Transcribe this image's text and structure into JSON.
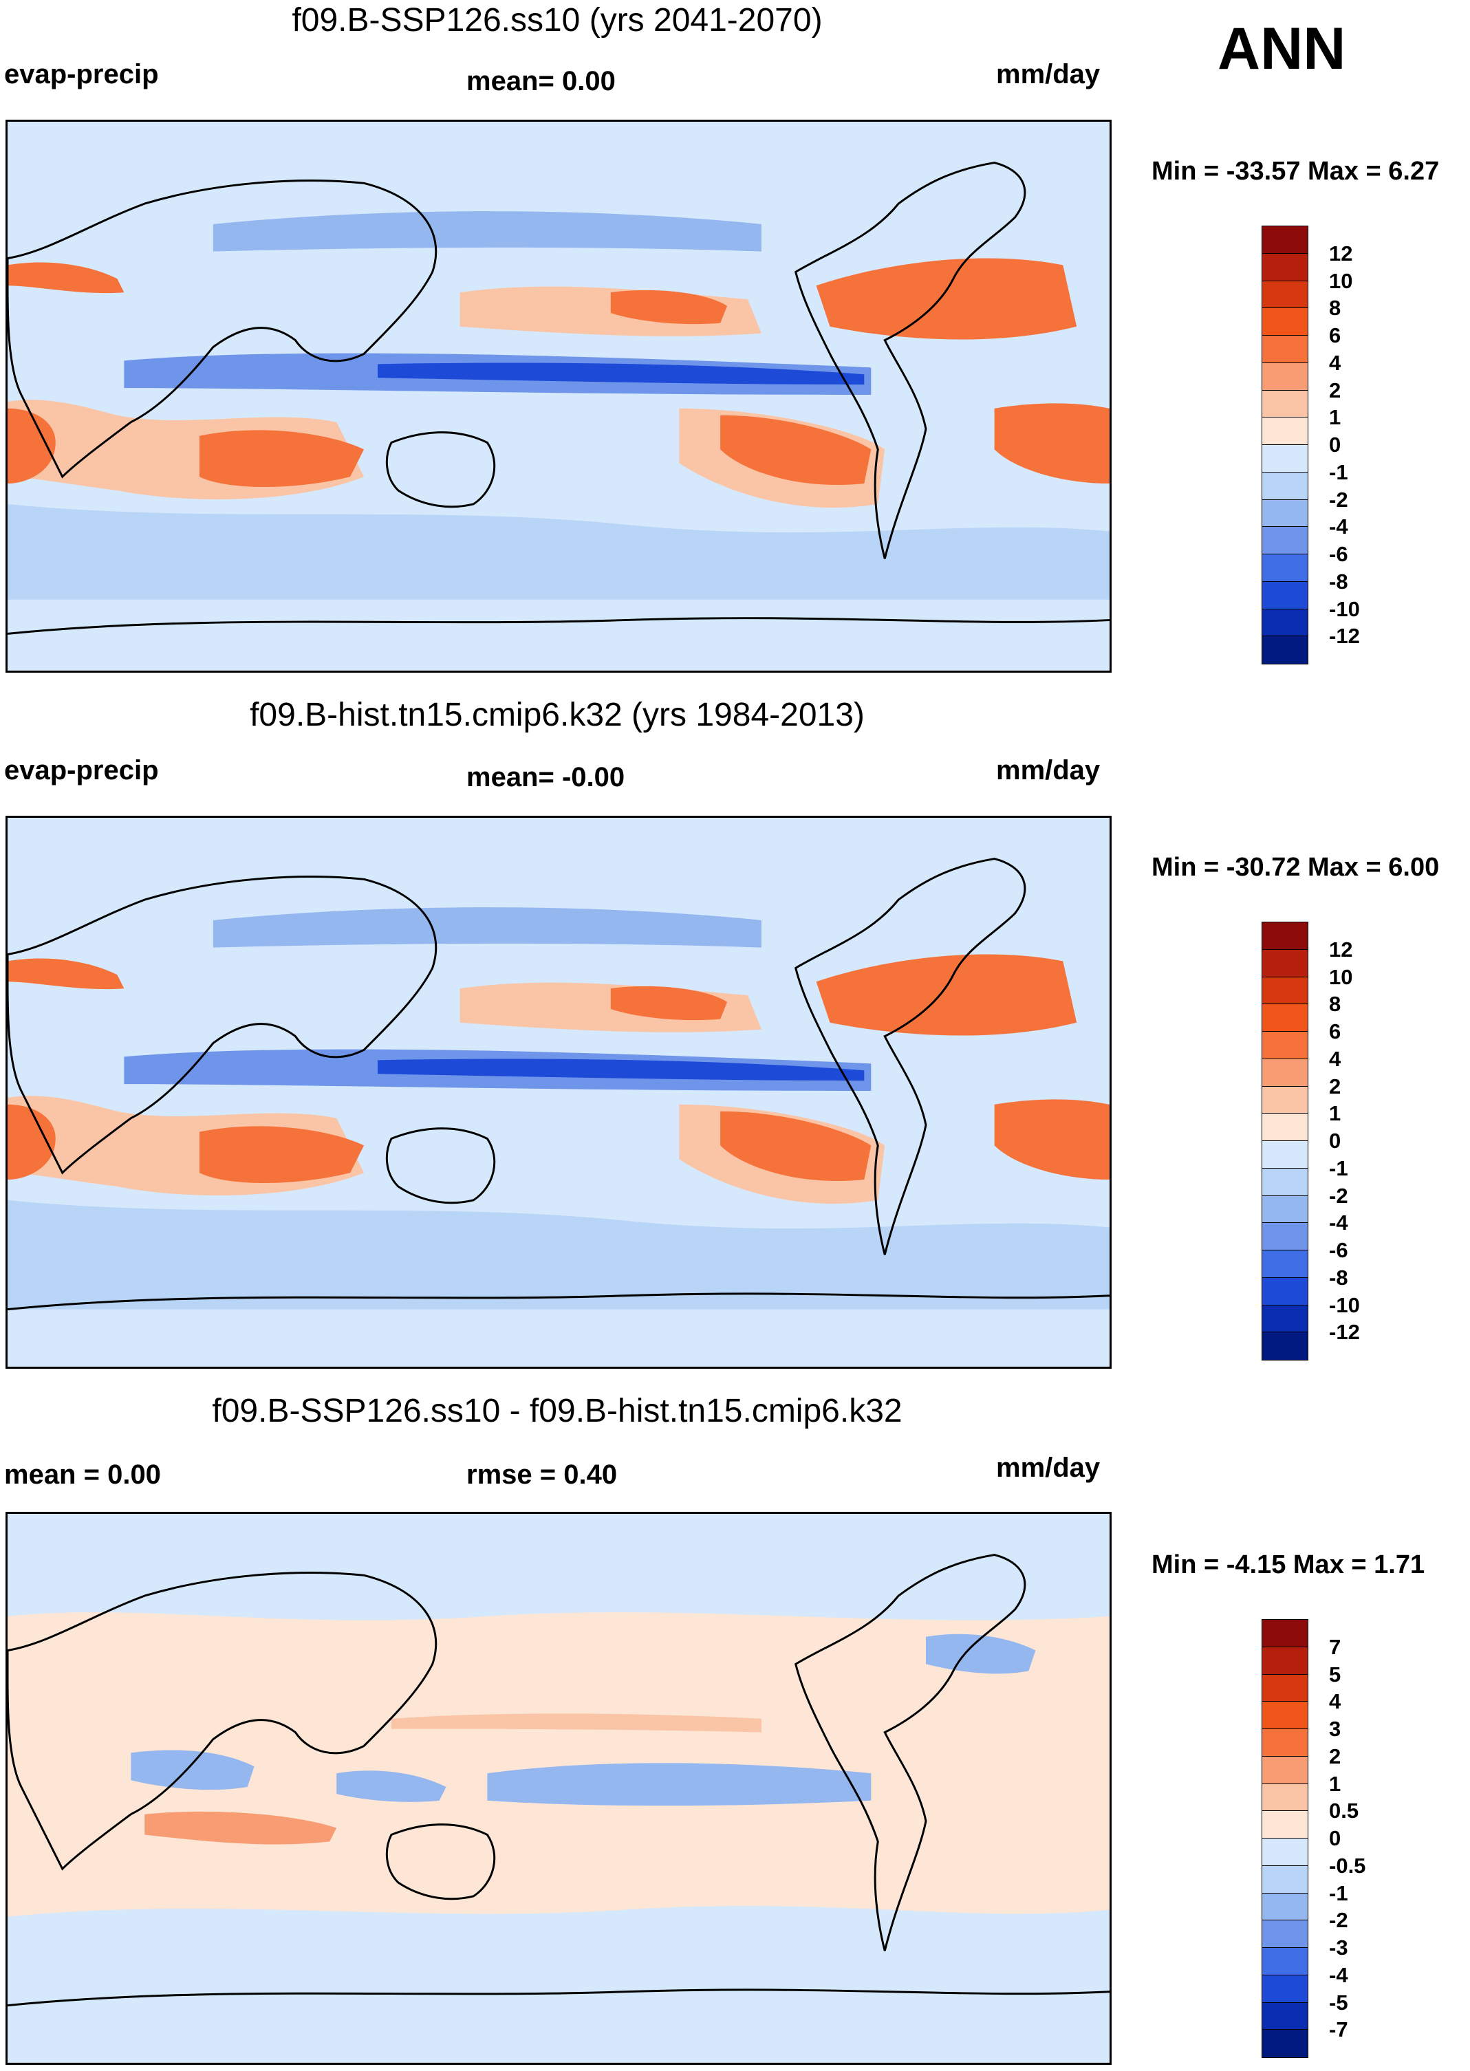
{
  "annual_tag": "ANN",
  "panels": [
    {
      "title": "f09.B-SSP126.ss10 (yrs 2041-2070)",
      "left_label": "evap-precip",
      "center_label": "mean=   0.00",
      "units": "mm/day",
      "minmax": "Min = -33.57 Max =    6.27",
      "colorbar_levels": [
        "12",
        "10",
        "8",
        "6",
        "4",
        "2",
        "1",
        "0",
        "-1",
        "-2",
        "-4",
        "-6",
        "-8",
        "-10",
        "-12"
      ],
      "colorbar_colors": [
        "#8c0a0a",
        "#b71f0d",
        "#d8380f",
        "#f25519",
        "#f5723b",
        "#f79c73",
        "#fac5a6",
        "#fde6d5",
        "#d6e8fb",
        "#b8d4f6",
        "#95b7f0",
        "#6f95ea",
        "#3f6ee6",
        "#1e4ad8",
        "#0a2cb0",
        "#001a80"
      ]
    },
    {
      "title": "f09.B-hist.tn15.cmip6.k32 (yrs 1984-2013)",
      "left_label": "evap-precip",
      "center_label": "mean=  -0.00",
      "units": "mm/day",
      "minmax": "Min = -30.72 Max =    6.00",
      "colorbar_levels": [
        "12",
        "10",
        "8",
        "6",
        "4",
        "2",
        "1",
        "0",
        "-1",
        "-2",
        "-4",
        "-6",
        "-8",
        "-10",
        "-12"
      ],
      "colorbar_colors": [
        "#8c0a0a",
        "#b71f0d",
        "#d8380f",
        "#f25519",
        "#f5723b",
        "#f79c73",
        "#fac5a6",
        "#fde6d5",
        "#d6e8fb",
        "#b8d4f6",
        "#95b7f0",
        "#6f95ea",
        "#3f6ee6",
        "#1e4ad8",
        "#0a2cb0",
        "#001a80"
      ]
    },
    {
      "title": "f09.B-SSP126.ss10 - f09.B-hist.tn15.cmip6.k32",
      "left_label": "mean =    0.00",
      "center_label": "rmse =   0.40",
      "units": "mm/day",
      "minmax": "Min =  -4.15 Max =    1.71",
      "colorbar_levels": [
        "7",
        "5",
        "4",
        "3",
        "2",
        "1",
        "0.5",
        "0",
        "-0.5",
        "-1",
        "-2",
        "-3",
        "-4",
        "-5",
        "-7"
      ],
      "colorbar_colors": [
        "#8c0a0a",
        "#b71f0d",
        "#d8380f",
        "#f25519",
        "#f5723b",
        "#f79c73",
        "#fac5a6",
        "#fde6d5",
        "#d6e8fb",
        "#b8d4f6",
        "#95b7f0",
        "#6f95ea",
        "#3f6ee6",
        "#1e4ad8",
        "#0a2cb0",
        "#001a80"
      ]
    }
  ],
  "chart_data": [
    {
      "type": "heatmap",
      "title": "f09.B-SSP126.ss10 (yrs 2041-2070)",
      "variable": "evap-precip",
      "units": "mm/day",
      "mean": 0.0,
      "min": -33.57,
      "max": 6.27,
      "contour_levels": [
        -12,
        -10,
        -8,
        -6,
        -4,
        -2,
        -1,
        0,
        1,
        2,
        4,
        6,
        8,
        10,
        12
      ],
      "legend": "right colorbar"
    },
    {
      "type": "heatmap",
      "title": "f09.B-hist.tn15.cmip6.k32 (yrs 1984-2013)",
      "variable": "evap-precip",
      "units": "mm/day",
      "mean": -0.0,
      "min": -30.72,
      "max": 6.0,
      "contour_levels": [
        -12,
        -10,
        -8,
        -6,
        -4,
        -2,
        -1,
        0,
        1,
        2,
        4,
        6,
        8,
        10,
        12
      ],
      "legend": "right colorbar"
    },
    {
      "type": "heatmap",
      "title": "f09.B-SSP126.ss10 - f09.B-hist.tn15.cmip6.k32",
      "units": "mm/day",
      "mean": 0.0,
      "rmse": 0.4,
      "min": -4.15,
      "max": 1.71,
      "contour_levels": [
        -7,
        -5,
        -4,
        -3,
        -2,
        -1,
        -0.5,
        0,
        0.5,
        1,
        2,
        3,
        4,
        5,
        7
      ],
      "legend": "right colorbar"
    }
  ]
}
